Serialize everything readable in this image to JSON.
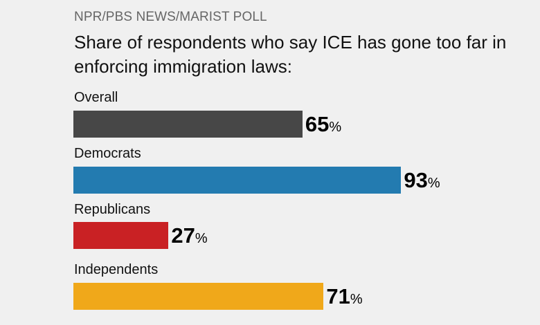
{
  "chart_data": {
    "type": "bar",
    "orientation": "horizontal",
    "source": "NPR/PBS NEWS/MARIST POLL",
    "title": "Share of respondents who say ICE has gone too far in enforcing immigration laws:",
    "categories": [
      "Overall",
      "Democrats",
      "Republicans",
      "Independents"
    ],
    "values": [
      65,
      93,
      27,
      71
    ],
    "unit": "%",
    "colors": [
      "#474747",
      "#237bb0",
      "#c92124",
      "#f0a81a"
    ],
    "xlim": [
      0,
      100
    ],
    "grid": false,
    "legend": "none"
  }
}
